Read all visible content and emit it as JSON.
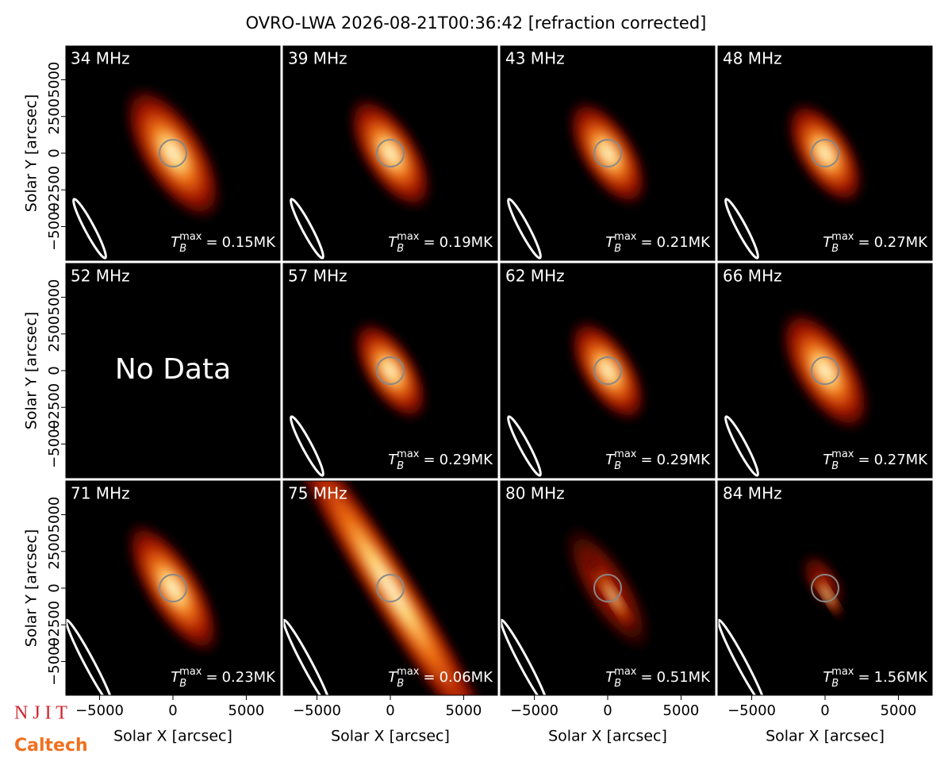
{
  "title": "OVRO-LWA 2026-08-21T00:36:42 [refraction corrected]",
  "axes": {
    "xlabel": "Solar X [arcsec]",
    "ylabel": "Solar Y [arcsec]",
    "xlim": [
      -7300,
      7300
    ],
    "ylim": [
      -7300,
      7300
    ],
    "xticks": [
      {
        "value": -5000,
        "label": "−5000"
      },
      0,
      5000
    ],
    "yticks": [
      {
        "value": -5000,
        "label": "−5000"
      },
      {
        "value": -2500,
        "label": "−2500"
      },
      0,
      2500,
      5000
    ]
  },
  "tb_symbol": "T",
  "tb_subscript": "B",
  "tb_superscript": "max",
  "tb_equals": "=",
  "logos": [
    "N J I T",
    "Caltech"
  ],
  "chart_data": [
    {
      "type": "image",
      "title": "34 MHz",
      "tb_max": "0.15MK"
    },
    {
      "type": "image",
      "title": "39 MHz",
      "tb_max": "0.19MK"
    },
    {
      "type": "image",
      "title": "43 MHz",
      "tb_max": "0.21MK"
    },
    {
      "type": "image",
      "title": "48 MHz",
      "tb_max": "0.27MK"
    },
    {
      "type": "image",
      "title": "52 MHz",
      "annotation": "No Data"
    },
    {
      "type": "image",
      "title": "57 MHz",
      "tb_max": "0.29MK"
    },
    {
      "type": "image",
      "title": "62 MHz",
      "tb_max": "0.29MK"
    },
    {
      "type": "image",
      "title": "66 MHz",
      "tb_max": "0.27MK"
    },
    {
      "type": "image",
      "title": "71 MHz",
      "tb_max": "0.23MK"
    },
    {
      "type": "image",
      "title": "75 MHz",
      "tb_max": "0.06MK"
    },
    {
      "type": "image",
      "title": "80 MHz",
      "tb_max": "0.51MK"
    },
    {
      "type": "image",
      "title": "84 MHz",
      "tb_max": "1.56MK"
    }
  ]
}
